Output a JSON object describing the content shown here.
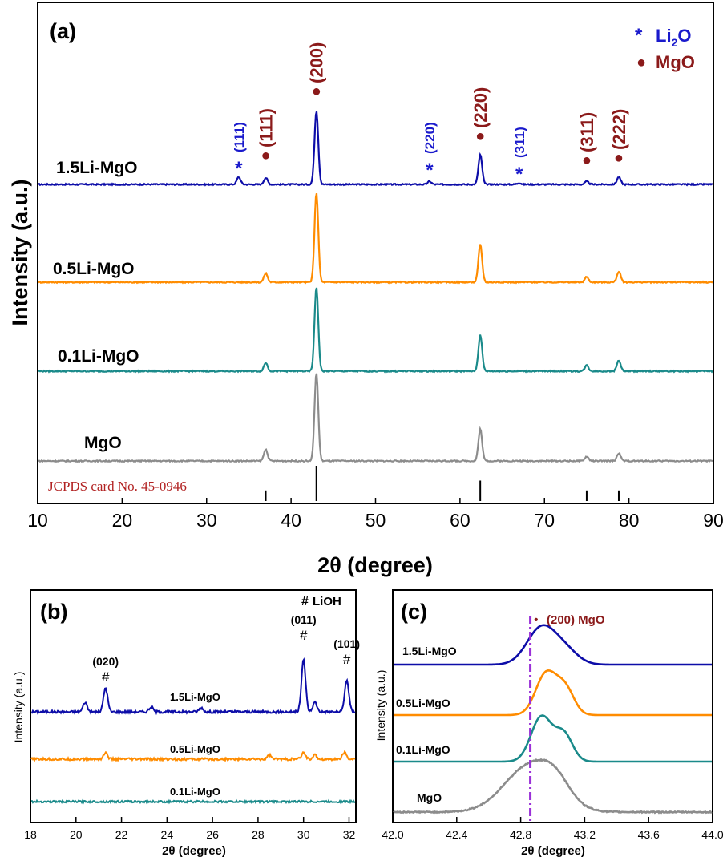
{
  "chart_data": [
    {
      "panel": "(a)",
      "type": "line",
      "xlabel": "2θ (degree)",
      "ylabel": "Intensity (a.u.)",
      "xlim": [
        10,
        90
      ],
      "xticks": [
        10,
        20,
        30,
        40,
        50,
        60,
        70,
        80,
        90
      ],
      "legend": {
        "placement": "top-right",
        "entries": [
          {
            "marker": "*",
            "label": "Li2O",
            "label_main": "Li",
            "label_sub": "2",
            "label_tail": "O",
            "color": "#1a1acc"
          },
          {
            "marker": "●",
            "label": "MgO",
            "color": "#8b1a1a"
          }
        ]
      },
      "series": [
        {
          "name": "1.5Li-MgO",
          "color": "#0d0da8",
          "peaks": [
            [
              33.8,
              0.1
            ],
            [
              37.0,
              0.09
            ],
            [
              43.0,
              1.0
            ],
            [
              56.4,
              0.04
            ],
            [
              62.4,
              0.4
            ],
            [
              67.0,
              0.02
            ],
            [
              75.0,
              0.04
            ],
            [
              78.8,
              0.1
            ]
          ]
        },
        {
          "name": "0.5Li-MgO",
          "color": "#ff8c00",
          "peaks": [
            [
              37.0,
              0.1
            ],
            [
              43.0,
              1.0
            ],
            [
              62.4,
              0.42
            ],
            [
              75.0,
              0.06
            ],
            [
              78.8,
              0.12
            ]
          ]
        },
        {
          "name": "0.1Li-MgO",
          "color": "#1a8a8a",
          "peaks": [
            [
              37.0,
              0.1
            ],
            [
              43.0,
              1.0
            ],
            [
              62.4,
              0.43
            ],
            [
              75.0,
              0.07
            ],
            [
              78.8,
              0.13
            ]
          ]
        },
        {
          "name": "MgO",
          "color": "#8c8c8c",
          "peaks": [
            [
              37.0,
              0.13
            ],
            [
              43.0,
              1.0
            ],
            [
              62.4,
              0.36
            ],
            [
              75.0,
              0.05
            ],
            [
              78.8,
              0.09
            ]
          ]
        }
      ],
      "reference": {
        "label": "JCPDS card No. 45-0946",
        "color": "#b22222",
        "lines": [
          [
            37.0,
            0.3
          ],
          [
            43.0,
            1.0
          ],
          [
            62.4,
            0.58
          ],
          [
            75.0,
            0.3
          ],
          [
            78.8,
            0.3
          ]
        ]
      },
      "annotations": [
        {
          "text": "(111)",
          "x": 33.8,
          "phase": "Li2O",
          "marker": "*",
          "color": "#1a1acc"
        },
        {
          "text": "(111)",
          "x": 37.0,
          "phase": "MgO",
          "marker": "●",
          "color": "#8b1a1a"
        },
        {
          "text": "(200)",
          "x": 43.0,
          "phase": "MgO",
          "marker": "●",
          "color": "#8b1a1a"
        },
        {
          "text": "(220)",
          "x": 56.4,
          "phase": "Li2O",
          "marker": "*",
          "color": "#1a1acc"
        },
        {
          "text": "(220)",
          "x": 62.4,
          "phase": "MgO",
          "marker": "●",
          "color": "#8b1a1a"
        },
        {
          "text": "(311)",
          "x": 67.0,
          "phase": "Li2O",
          "marker": "*",
          "color": "#1a1acc"
        },
        {
          "text": "(311)",
          "x": 75.0,
          "phase": "MgO",
          "marker": "●",
          "color": "#8b1a1a"
        },
        {
          "text": "(222)",
          "x": 78.8,
          "phase": "MgO",
          "marker": "●",
          "color": "#8b1a1a"
        }
      ]
    },
    {
      "panel": "(b)",
      "type": "line",
      "xlabel": "2θ (degree)",
      "ylabel": "Intensity (a.u.)",
      "xlim": [
        18,
        32.3
      ],
      "xticks": [
        18,
        20,
        22,
        24,
        26,
        28,
        30,
        32
      ],
      "legend": {
        "placement": "top-right",
        "entries": [
          {
            "marker": "#",
            "label": "LiOH",
            "color": "#000000"
          }
        ]
      },
      "series": [
        {
          "name": "1.5Li-MgO",
          "color": "#0d0da8",
          "peaks": [
            [
              20.4,
              0.12
            ],
            [
              21.3,
              0.3
            ],
            [
              23.3,
              0.06
            ],
            [
              25.5,
              0.05
            ],
            [
              30.0,
              0.65
            ],
            [
              30.5,
              0.12
            ],
            [
              31.9,
              0.4
            ]
          ]
        },
        {
          "name": "0.5Li-MgO",
          "color": "#ff8c00",
          "peaks": [
            [
              21.3,
              0.08
            ],
            [
              28.5,
              0.05
            ],
            [
              30.0,
              0.08
            ],
            [
              30.5,
              0.05
            ],
            [
              31.8,
              0.08
            ]
          ]
        },
        {
          "name": "0.1Li-MgO",
          "color": "#1a8a8a",
          "peaks": []
        }
      ],
      "annotations": [
        {
          "text": "(020)",
          "x": 21.3,
          "marker": "#"
        },
        {
          "text": "(011)",
          "x": 30.0,
          "marker": "#"
        },
        {
          "text": "(101)",
          "x": 31.9,
          "marker": "#"
        }
      ]
    },
    {
      "panel": "(c)",
      "type": "line",
      "xlabel": "2θ (degree)",
      "ylabel": "Intensity (a.u.)",
      "xlim": [
        42.0,
        44.0
      ],
      "xticks": [
        "42.0",
        "42.4",
        "42.8",
        "43.2",
        "43.6",
        "44.0"
      ],
      "reference_line": {
        "x": 42.86,
        "color": "#9a30d8",
        "style": "dash-dot"
      },
      "annotation": {
        "text": "(200) MgO",
        "marker": "•",
        "color": "#8b1a1a"
      },
      "series": [
        {
          "name": "1.5Li-MgO",
          "color": "#0d0da8",
          "peaks": [
            [
              42.93,
              0.09,
              1.0
            ],
            [
              43.08,
              0.08,
              0.35
            ]
          ]
        },
        {
          "name": "0.5Li-MgO",
          "color": "#ff8c00",
          "peaks": [
            [
              42.96,
              0.065,
              1.0
            ],
            [
              43.08,
              0.055,
              0.6
            ]
          ]
        },
        {
          "name": "0.1Li-MgO",
          "color": "#1a8a8a",
          "peaks": [
            [
              42.93,
              0.065,
              1.0
            ],
            [
              43.07,
              0.055,
              0.6
            ]
          ]
        },
        {
          "name": "MgO",
          "color": "#8c8c8c",
          "peaks": [
            [
              42.86,
              0.16,
              1.0
            ],
            [
              43.02,
              0.09,
              0.35
            ]
          ]
        }
      ]
    }
  ]
}
